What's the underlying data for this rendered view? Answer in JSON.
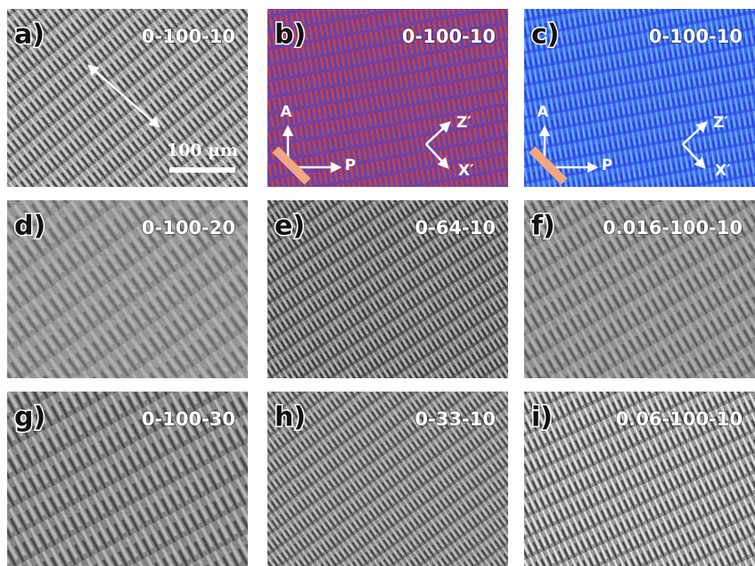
{
  "panels": [
    {
      "letter": "a)",
      "label": "0-100-10",
      "scale_bar": "100 μm"
    },
    {
      "letter": "b)",
      "label": "0-100-10",
      "analyzer": "A",
      "polarizer": "P",
      "z_axis": "Z′",
      "x_axis": "X′"
    },
    {
      "letter": "c)",
      "label": "0-100-10",
      "analyzer": "A",
      "polarizer": "P",
      "z_axis": "Z′",
      "x_axis": "X′"
    },
    {
      "letter": "d)",
      "label": "0-100-20"
    },
    {
      "letter": "e)",
      "label": "0-64-10"
    },
    {
      "letter": "f)",
      "label": "0.016-100-10"
    },
    {
      "letter": "g)",
      "label": "0-100-30"
    },
    {
      "letter": "h)",
      "label": "0-33-10"
    },
    {
      "letter": "i)",
      "label": "0.06-100-10"
    }
  ]
}
